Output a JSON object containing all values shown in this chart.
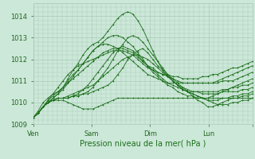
{
  "bg_color": "#cce8d8",
  "grid_color": "#aac8b8",
  "line_color": "#1a6e1a",
  "marker_color": "#1a6e1a",
  "xlabel": "Pression niveau de la mer( hPa )",
  "xlabel_color": "#1a6e1a",
  "tick_color": "#226622",
  "ylim": [
    1009.0,
    1014.6
  ],
  "yticks": [
    1009,
    1010,
    1011,
    1012,
    1013,
    1014
  ],
  "xlim": [
    0,
    90
  ],
  "xtick_positions": [
    0,
    24,
    48,
    72,
    90
  ],
  "xtick_labels": [
    "Ven",
    "Sam",
    "Dim",
    "Lun",
    ""
  ],
  "series": [
    [
      1009.3,
      1009.5,
      1009.8,
      1010.0,
      1010.1,
      1010.1,
      1010.1,
      1010.0,
      1009.9,
      1009.8,
      1009.7,
      1009.7,
      1009.7,
      1009.8,
      1009.9,
      1010.0,
      1010.1,
      1010.2,
      1010.2,
      1010.2,
      1010.2,
      1010.2,
      1010.2,
      1010.2,
      1010.2,
      1010.2,
      1010.2,
      1010.2,
      1010.2,
      1010.2,
      1010.2,
      1010.2,
      1010.2,
      1010.2,
      1010.2,
      1010.2,
      1010.2,
      1010.2,
      1010.2,
      1010.2,
      1010.2,
      1010.2,
      1010.2,
      1010.2,
      1010.2
    ],
    [
      1009.3,
      1009.5,
      1009.8,
      1010.0,
      1010.1,
      1010.2,
      1010.2,
      1010.2,
      1010.3,
      1010.3,
      1010.4,
      1010.4,
      1010.5,
      1010.6,
      1010.7,
      1010.8,
      1011.0,
      1011.3,
      1011.6,
      1012.0,
      1012.2,
      1012.4,
      1012.5,
      1012.3,
      1012.0,
      1011.7,
      1011.5,
      1011.3,
      1011.1,
      1010.9,
      1010.7,
      1010.5,
      1010.3,
      1010.1,
      1010.0,
      1009.8,
      1009.8,
      1009.9,
      1010.0,
      1010.1,
      1010.2,
      1010.2,
      1010.3,
      1010.3,
      1010.4
    ],
    [
      1009.3,
      1009.5,
      1009.8,
      1010.0,
      1010.1,
      1010.2,
      1010.2,
      1010.2,
      1010.3,
      1010.3,
      1010.4,
      1010.5,
      1010.7,
      1011.0,
      1011.3,
      1011.6,
      1012.0,
      1012.4,
      1012.7,
      1013.0,
      1013.1,
      1013.0,
      1012.8,
      1012.5,
      1012.2,
      1011.9,
      1011.6,
      1011.3,
      1011.0,
      1010.8,
      1010.6,
      1010.5,
      1010.4,
      1010.3,
      1010.2,
      1010.1,
      1010.1,
      1010.1,
      1010.2,
      1010.2,
      1010.3,
      1010.3,
      1010.4,
      1010.4,
      1010.5
    ],
    [
      1009.3,
      1009.5,
      1009.8,
      1010.0,
      1010.1,
      1010.2,
      1010.2,
      1010.3,
      1010.4,
      1010.5,
      1010.6,
      1010.7,
      1010.8,
      1011.0,
      1011.2,
      1011.4,
      1011.6,
      1011.8,
      1012.0,
      1012.1,
      1012.2,
      1012.2,
      1012.1,
      1012.0,
      1011.8,
      1011.6,
      1011.4,
      1011.2,
      1011.0,
      1010.8,
      1010.7,
      1010.6,
      1010.5,
      1010.5,
      1010.4,
      1010.4,
      1010.4,
      1010.4,
      1010.5,
      1010.5,
      1010.5,
      1010.5,
      1010.6,
      1010.6,
      1010.7
    ],
    [
      1009.3,
      1009.5,
      1009.8,
      1010.0,
      1010.1,
      1010.2,
      1010.2,
      1010.2,
      1010.3,
      1010.4,
      1010.6,
      1010.8,
      1011.1,
      1011.4,
      1011.7,
      1012.0,
      1012.3,
      1012.5,
      1012.6,
      1012.5,
      1012.4,
      1012.2,
      1011.9,
      1011.7,
      1011.4,
      1011.2,
      1011.0,
      1010.8,
      1010.7,
      1010.5,
      1010.4,
      1010.3,
      1010.3,
      1010.2,
      1010.2,
      1010.2,
      1010.3,
      1010.4,
      1010.5,
      1010.6,
      1010.7,
      1010.7,
      1010.8,
      1010.8,
      1010.9
    ],
    [
      1009.3,
      1009.5,
      1009.8,
      1010.1,
      1010.3,
      1010.5,
      1010.7,
      1010.9,
      1011.1,
      1011.3,
      1011.5,
      1011.7,
      1011.9,
      1012.1,
      1012.3,
      1012.4,
      1012.5,
      1012.5,
      1012.5,
      1012.4,
      1012.3,
      1012.1,
      1011.9,
      1011.7,
      1011.6,
      1011.4,
      1011.3,
      1011.2,
      1011.1,
      1011.0,
      1010.9,
      1010.9,
      1010.9,
      1010.9,
      1010.9,
      1010.9,
      1010.9,
      1010.9,
      1011.0,
      1011.0,
      1011.0,
      1011.1,
      1011.2,
      1011.3,
      1011.4
    ],
    [
      1009.3,
      1009.5,
      1009.8,
      1010.0,
      1010.2,
      1010.4,
      1010.6,
      1010.9,
      1011.2,
      1011.5,
      1011.8,
      1012.1,
      1012.4,
      1012.6,
      1012.7,
      1012.7,
      1012.6,
      1012.5,
      1012.3,
      1012.1,
      1011.9,
      1011.7,
      1011.5,
      1011.3,
      1011.2,
      1011.1,
      1011.0,
      1010.9,
      1010.9,
      1010.9,
      1010.9,
      1010.9,
      1010.9,
      1010.9,
      1010.9,
      1010.9,
      1010.9,
      1011.0,
      1011.1,
      1011.2,
      1011.3,
      1011.4,
      1011.5,
      1011.6,
      1011.7
    ],
    [
      1009.3,
      1009.6,
      1010.0,
      1010.2,
      1010.4,
      1010.5,
      1010.7,
      1011.0,
      1011.3,
      1011.5,
      1011.8,
      1012.1,
      1012.4,
      1012.6,
      1012.8,
      1013.0,
      1013.1,
      1013.1,
      1013.0,
      1012.8,
      1012.6,
      1012.3,
      1012.0,
      1011.7,
      1011.5,
      1011.3,
      1011.1,
      1010.9,
      1010.8,
      1010.7,
      1010.6,
      1010.5,
      1010.4,
      1010.3,
      1010.2,
      1010.1,
      1010.0,
      1009.9,
      1009.9,
      1009.9,
      1010.0,
      1010.0,
      1010.1,
      1010.1,
      1010.2
    ],
    [
      1009.3,
      1009.5,
      1009.8,
      1010.0,
      1010.2,
      1010.4,
      1010.7,
      1011.1,
      1011.5,
      1011.8,
      1012.2,
      1012.5,
      1012.7,
      1012.8,
      1013.0,
      1013.3,
      1013.6,
      1013.9,
      1014.1,
      1014.2,
      1014.1,
      1013.8,
      1013.4,
      1012.9,
      1012.4,
      1011.9,
      1011.5,
      1011.2,
      1011.0,
      1010.8,
      1010.6,
      1010.5,
      1010.5,
      1010.5,
      1010.5,
      1010.5,
      1010.5,
      1010.5,
      1010.6,
      1010.6,
      1010.7,
      1010.8,
      1010.9,
      1011.0,
      1011.1
    ],
    [
      1009.3,
      1009.5,
      1009.8,
      1010.1,
      1010.4,
      1010.7,
      1011.0,
      1011.3,
      1011.5,
      1011.7,
      1011.8,
      1011.9,
      1012.0,
      1012.1,
      1012.2,
      1012.3,
      1012.4,
      1012.4,
      1012.4,
      1012.3,
      1012.2,
      1012.0,
      1011.8,
      1011.6,
      1011.5,
      1011.4,
      1011.3,
      1011.3,
      1011.2,
      1011.2,
      1011.1,
      1011.1,
      1011.1,
      1011.1,
      1011.2,
      1011.2,
      1011.3,
      1011.3,
      1011.4,
      1011.5,
      1011.6,
      1011.6,
      1011.7,
      1011.8,
      1011.9
    ]
  ]
}
